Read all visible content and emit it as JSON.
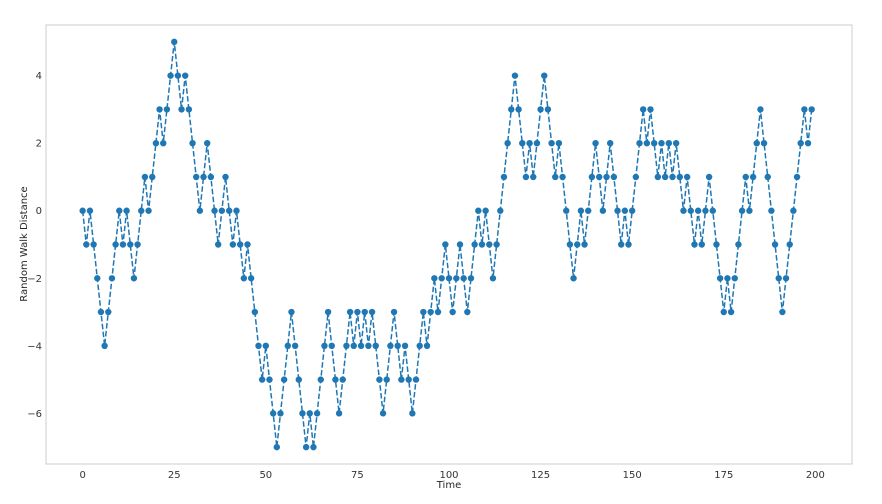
{
  "chart_data": {
    "type": "line",
    "title": "",
    "xlabel": "Time",
    "ylabel": "Random Walk Distance",
    "xlim": [
      -10,
      210
    ],
    "ylim": [
      -7.5,
      5.5
    ],
    "xticks": [
      0,
      25,
      50,
      75,
      100,
      125,
      150,
      175,
      200
    ],
    "yticks": [
      -6,
      -4,
      -2,
      0,
      2,
      4
    ],
    "grid": false,
    "legend": "none",
    "series": [
      {
        "color": "#1f77b4",
        "linestyle": "dashed",
        "marker": "circle",
        "x": [
          0,
          1,
          2,
          3,
          4,
          5,
          6,
          7,
          8,
          9,
          10,
          11,
          12,
          13,
          14,
          15,
          16,
          17,
          18,
          19,
          20,
          21,
          22,
          23,
          24,
          25,
          26,
          27,
          28,
          29,
          30,
          31,
          32,
          33,
          34,
          35,
          36,
          37,
          38,
          39,
          40,
          41,
          42,
          43,
          44,
          45,
          46,
          47,
          48,
          49,
          50,
          51,
          52,
          53,
          54,
          55,
          56,
          57,
          58,
          59,
          60,
          61,
          62,
          63,
          64,
          65,
          66,
          67,
          68,
          69,
          70,
          71,
          72,
          73,
          74,
          75,
          76,
          77,
          78,
          79,
          80,
          81,
          82,
          83,
          84,
          85,
          86,
          87,
          88,
          89,
          90,
          91,
          92,
          93,
          94,
          95,
          96,
          97,
          98,
          99,
          100,
          101,
          102,
          103,
          104,
          105,
          106,
          107,
          108,
          109,
          110,
          111,
          112,
          113,
          114,
          115,
          116,
          117,
          118,
          119,
          120,
          121,
          122,
          123,
          124,
          125,
          126,
          127,
          128,
          129,
          130,
          131,
          132,
          133,
          134,
          135,
          136,
          137,
          138,
          139,
          140,
          141,
          142,
          143,
          144,
          145,
          146,
          147,
          148,
          149,
          150,
          151,
          152,
          153,
          154,
          155,
          156,
          157,
          158,
          159,
          160,
          161,
          162,
          163,
          164,
          165,
          166,
          167,
          168,
          169,
          170,
          171,
          172,
          173,
          174,
          175,
          176,
          177,
          178,
          179,
          180,
          181,
          182,
          183,
          184,
          185,
          186,
          187,
          188,
          189,
          190,
          191,
          192,
          193,
          194,
          195,
          196,
          197,
          198,
          199
        ],
        "y": [
          0,
          -1,
          0,
          -1,
          -2,
          -3,
          -4,
          -3,
          -2,
          -1,
          0,
          -1,
          0,
          -1,
          -2,
          -1,
          0,
          1,
          0,
          1,
          2,
          3,
          2,
          3,
          4,
          5,
          4,
          3,
          4,
          3,
          2,
          1,
          0,
          1,
          2,
          1,
          0,
          -1,
          0,
          1,
          0,
          -1,
          0,
          -1,
          -2,
          -1,
          -2,
          -3,
          -4,
          -5,
          -4,
          -5,
          -6,
          -7,
          -6,
          -5,
          -4,
          -3,
          -4,
          -5,
          -6,
          -7,
          -6,
          -7,
          -6,
          -5,
          -4,
          -3,
          -4,
          -5,
          -6,
          -5,
          -4,
          -3,
          -4,
          -3,
          -4,
          -3,
          -4,
          -3,
          -4,
          -5,
          -6,
          -5,
          -4,
          -3,
          -4,
          -5,
          -4,
          -5,
          -6,
          -5,
          -4,
          -3,
          -4,
          -3,
          -2,
          -3,
          -2,
          -1,
          -2,
          -3,
          -2,
          -1,
          -2,
          -3,
          -2,
          -1,
          0,
          -1,
          0,
          -1,
          -2,
          -1,
          0,
          1,
          2,
          3,
          4,
          3,
          2,
          1,
          2,
          1,
          2,
          3,
          4,
          3,
          2,
          1,
          2,
          1,
          0,
          -1,
          -2,
          -1,
          0,
          -1,
          0,
          1,
          2,
          1,
          0,
          1,
          2,
          1,
          0,
          -1,
          0,
          -1,
          0,
          1,
          2,
          3,
          2,
          3,
          2,
          1,
          2,
          1,
          2,
          1,
          2,
          1,
          0,
          1,
          0,
          -1,
          0,
          -1,
          0,
          1,
          0,
          -1,
          -2,
          -3,
          -2,
          -3,
          -2,
          -1,
          0,
          1,
          0,
          1,
          2,
          3,
          2,
          1,
          0,
          -1,
          -2,
          -3,
          -2,
          -1,
          0,
          1,
          2,
          3,
          2,
          3
        ]
      }
    ]
  }
}
